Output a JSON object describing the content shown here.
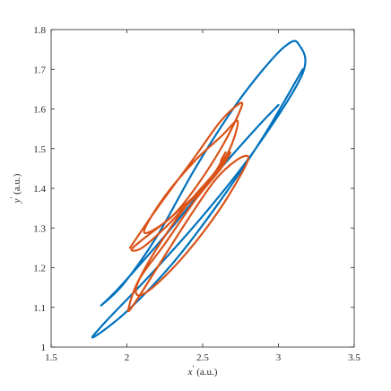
{
  "chart_data": {
    "type": "line",
    "xlabel": {
      "var": "x",
      "prime": "′",
      "unit": " (a.u.)"
    },
    "ylabel": {
      "var": "y",
      "prime": "′",
      "unit": " (a.u.)"
    },
    "xlim": [
      1.5,
      3.5
    ],
    "ylim": [
      1.0,
      1.8
    ],
    "xticks": [
      1.5,
      2,
      2.5,
      3,
      3.5
    ],
    "xtick_labels": [
      "1.5",
      "2",
      "2.5",
      "3",
      "3.5"
    ],
    "yticks": [
      1.0,
      1.1,
      1.2,
      1.3,
      1.4,
      1.5,
      1.6,
      1.7,
      1.8
    ],
    "ytick_labels": [
      "1",
      "1.1",
      "1.2",
      "1.3",
      "1.4",
      "1.5",
      "1.6",
      "1.7",
      "1.8"
    ],
    "grid": false,
    "series": [
      {
        "color": "#0072BD",
        "points": [
          [
            3.16,
            1.7
          ],
          [
            2.9,
            1.53
          ],
          [
            2.6,
            1.36
          ],
          [
            2.3,
            1.21
          ],
          [
            2.0,
            1.09
          ],
          [
            1.78,
            1.025
          ],
          [
            1.85,
            1.06
          ],
          [
            2.15,
            1.18
          ],
          [
            2.5,
            1.33
          ],
          [
            2.85,
            1.5
          ],
          [
            3.16,
            1.69
          ],
          [
            3.13,
            1.765
          ],
          [
            3.05,
            1.76
          ],
          [
            2.9,
            1.7
          ],
          [
            2.7,
            1.6
          ],
          [
            2.45,
            1.45
          ],
          [
            2.2,
            1.28
          ],
          [
            1.98,
            1.16
          ],
          [
            1.83,
            1.105
          ],
          [
            1.95,
            1.15
          ],
          [
            2.25,
            1.28
          ],
          [
            2.55,
            1.42
          ],
          [
            2.85,
            1.55
          ],
          [
            3.0,
            1.61
          ]
        ]
      },
      {
        "color": "#D95319",
        "points": [
          [
            2.02,
            1.25
          ],
          [
            2.2,
            1.35
          ],
          [
            2.45,
            1.48
          ],
          [
            2.62,
            1.57
          ],
          [
            2.75,
            1.615
          ],
          [
            2.74,
            1.59
          ],
          [
            2.62,
            1.5
          ],
          [
            2.45,
            1.4
          ],
          [
            2.3,
            1.33
          ],
          [
            2.15,
            1.29
          ],
          [
            2.12,
            1.3
          ],
          [
            2.25,
            1.38
          ],
          [
            2.45,
            1.47
          ],
          [
            2.62,
            1.53
          ],
          [
            2.73,
            1.57
          ],
          [
            2.68,
            1.5
          ],
          [
            2.55,
            1.42
          ],
          [
            2.4,
            1.36
          ],
          [
            2.25,
            1.3
          ],
          [
            2.1,
            1.25
          ],
          [
            2.03,
            1.245
          ],
          [
            2.1,
            1.27
          ],
          [
            2.3,
            1.33
          ],
          [
            2.55,
            1.42
          ],
          [
            2.68,
            1.49
          ],
          [
            2.62,
            1.45
          ],
          [
            2.45,
            1.37
          ],
          [
            2.25,
            1.26
          ],
          [
            2.08,
            1.17
          ],
          [
            2.01,
            1.095
          ],
          [
            2.05,
            1.11
          ],
          [
            2.2,
            1.2
          ],
          [
            2.4,
            1.32
          ],
          [
            2.58,
            1.42
          ],
          [
            2.72,
            1.47
          ],
          [
            2.8,
            1.48
          ],
          [
            2.76,
            1.44
          ],
          [
            2.6,
            1.34
          ],
          [
            2.4,
            1.24
          ],
          [
            2.2,
            1.16
          ],
          [
            2.08,
            1.13
          ],
          [
            2.07,
            1.16
          ],
          [
            2.2,
            1.25
          ],
          [
            2.4,
            1.36
          ],
          [
            2.58,
            1.44
          ],
          [
            2.65,
            1.49
          ],
          [
            2.62,
            1.47
          ]
        ]
      }
    ]
  }
}
